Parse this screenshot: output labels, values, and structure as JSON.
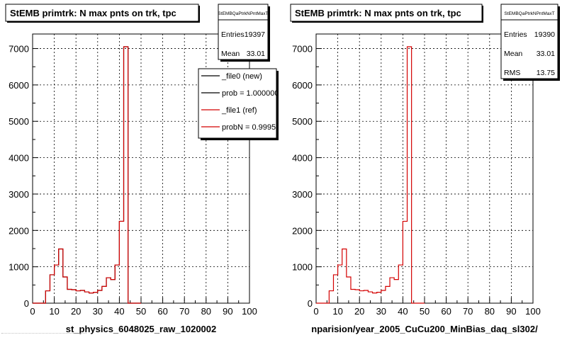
{
  "colors": {
    "background": "#ffffff",
    "frame": "#000000",
    "grid": "#000000",
    "new_series": "#000000",
    "ref_series": "#d40000",
    "shadow": "#000000"
  },
  "chart_data": [
    {
      "type": "bar",
      "title": "StEMB primtrk: N max pnts on trk, tpc",
      "xlabel": "st_physics_6048025_raw_1020002",
      "ylabel": "",
      "xlim": [
        0,
        100
      ],
      "ylim": [
        0,
        7400
      ],
      "xticks": [
        "0",
        "10",
        "20",
        "30",
        "40",
        "50",
        "60",
        "70",
        "80",
        "90",
        "100"
      ],
      "yticks": [
        "0",
        "1000",
        "2000",
        "3000",
        "4000",
        "5000",
        "6000",
        "7000"
      ],
      "grid": true,
      "bin_width": 2,
      "bin_edges_start": [
        0,
        2,
        4,
        6,
        8,
        10,
        12,
        14,
        16,
        18,
        20,
        22,
        24,
        26,
        28,
        30,
        32,
        34,
        36,
        38,
        40,
        42,
        44,
        46,
        48
      ],
      "stats": {
        "name": "StEMBQaPtrkNPntMaxT",
        "rows": [
          {
            "label": "Entries",
            "value": "19397"
          },
          {
            "label": "Mean",
            "value": "33.01"
          }
        ]
      },
      "legend": {
        "entries": [
          {
            "label": "_file0 (new)",
            "color": "#000000"
          },
          {
            "label": "prob = 1.000000",
            "color": "#000000"
          },
          {
            "label": "_file1 (ref)",
            "color": "#d40000"
          },
          {
            "label": "probN = 0.999597",
            "color": "#d40000"
          }
        ]
      },
      "series": [
        {
          "color": "#000000",
          "values": [
            0,
            0,
            0,
            340,
            780,
            1050,
            1490,
            720,
            380,
            370,
            340,
            350,
            310,
            280,
            300,
            350,
            460,
            700,
            650,
            1050,
            2250,
            7050,
            0,
            0,
            0
          ]
        },
        {
          "color": "#d40000",
          "values": [
            0,
            0,
            0,
            340,
            780,
            1050,
            1490,
            720,
            380,
            370,
            340,
            350,
            310,
            280,
            300,
            350,
            460,
            700,
            650,
            1050,
            2250,
            7050,
            0,
            0,
            0
          ]
        }
      ]
    },
    {
      "type": "bar",
      "title": "StEMB primtrk: N max pnts on trk, tpc",
      "xlabel": "nparision/year_2005_CuCu200_MinBias_daq_sl302/",
      "ylabel": "",
      "xlim": [
        0,
        100
      ],
      "ylim": [
        0,
        7400
      ],
      "xticks": [
        "0",
        "10",
        "20",
        "30",
        "40",
        "50",
        "60",
        "70",
        "80",
        "90",
        "100"
      ],
      "yticks": [
        "0",
        "1000",
        "2000",
        "3000",
        "4000",
        "5000",
        "6000",
        "7000"
      ],
      "grid": true,
      "bin_width": 2,
      "bin_edges_start": [
        0,
        2,
        4,
        6,
        8,
        10,
        12,
        14,
        16,
        18,
        20,
        22,
        24,
        26,
        28,
        30,
        32,
        34,
        36,
        38,
        40,
        42,
        44,
        46,
        48
      ],
      "stats": {
        "name": "StEMBQaPtrkNPntMaxT",
        "rows": [
          {
            "label": "Entries",
            "value": "19390"
          },
          {
            "label": "Mean",
            "value": "33.01"
          },
          {
            "label": "RMS",
            "value": "13.75"
          }
        ]
      },
      "series": [
        {
          "color": "#d40000",
          "values": [
            0,
            0,
            0,
            340,
            780,
            1050,
            1490,
            720,
            380,
            370,
            340,
            350,
            310,
            280,
            300,
            350,
            460,
            700,
            650,
            1050,
            2250,
            7050,
            0,
            0,
            0
          ]
        }
      ]
    }
  ]
}
